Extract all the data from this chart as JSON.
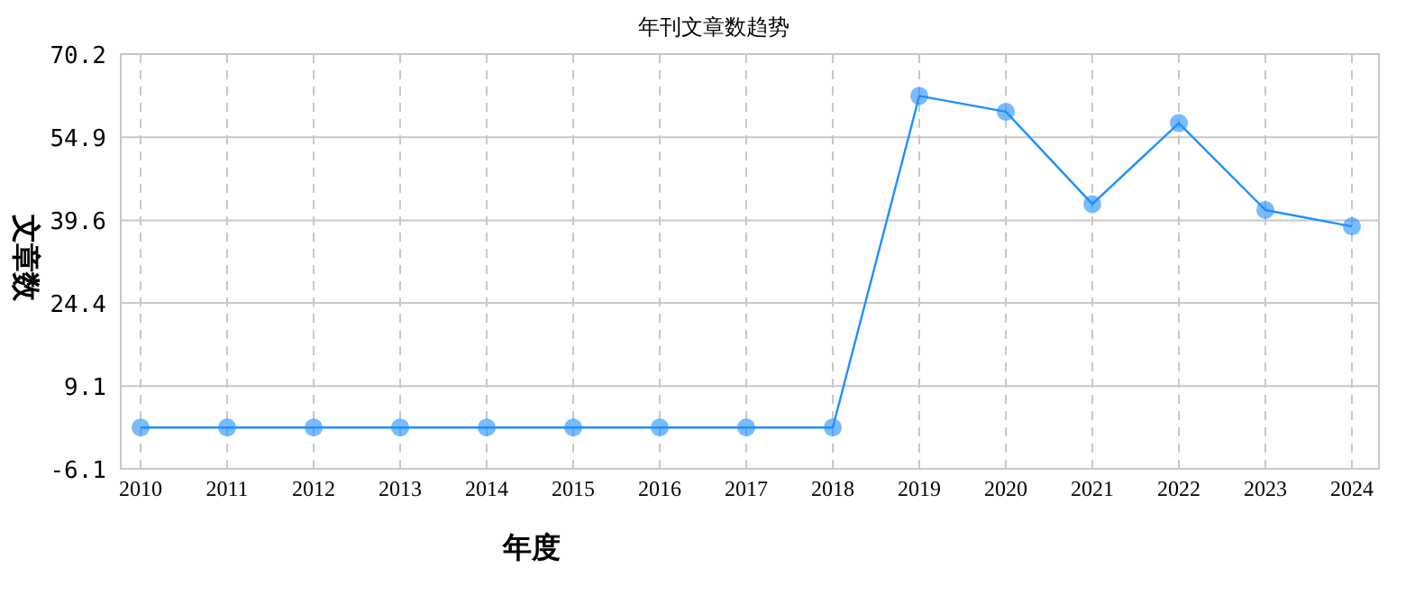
{
  "chart_data": {
    "type": "line",
    "title": "年刊文章数趋势",
    "xlabel": "年度",
    "ylabel": "文章数",
    "categories": [
      "2010",
      "2011",
      "2012",
      "2013",
      "2014",
      "2015",
      "2016",
      "2017",
      "2018",
      "2019",
      "2020",
      "2021",
      "2022",
      "2023",
      "2024"
    ],
    "series": [
      {
        "color": "#1e90ff",
        "values": [
          1.5,
          1.5,
          1.5,
          1.5,
          1.5,
          1.5,
          1.5,
          1.5,
          1.5,
          62.5,
          59.6,
          42.6,
          57.5,
          41.5,
          38.5
        ]
      }
    ],
    "ylim": [
      -6.1,
      70.2
    ],
    "yticks": [
      -6.1,
      9.1,
      24.4,
      39.6,
      54.9,
      70.2
    ],
    "grid": true,
    "marker": "circle",
    "line_style": "solid"
  }
}
